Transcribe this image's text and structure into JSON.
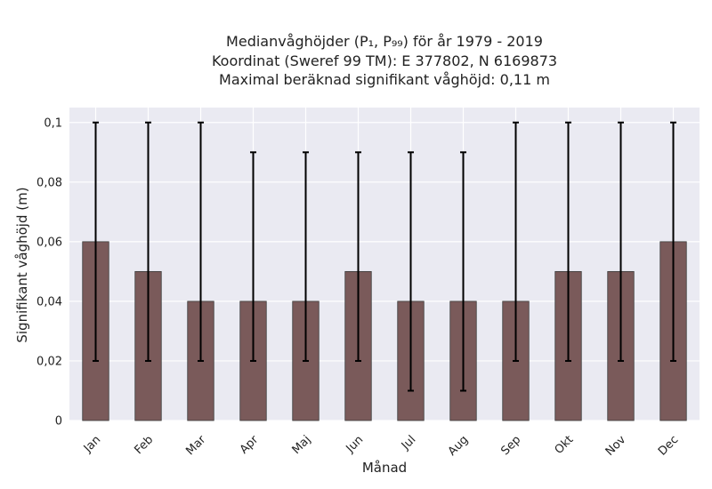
{
  "chart_data": {
    "type": "bar",
    "title_lines": [
      "Medianvåghöjder (P₁, P₉₉) för år 1979 - 2019",
      "Koordinat (Sweref 99 TM): E 377802, N 6169873",
      "Maximal beräknad signifikant våghöjd: 0,11 m"
    ],
    "xlabel": "Månad",
    "ylabel": "Signifikant våghöjd (m)",
    "categories": [
      "Jan",
      "Feb",
      "Mar",
      "Apr",
      "Maj",
      "Jun",
      "Jul",
      "Aug",
      "Sep",
      "Okt",
      "Nov",
      "Dec"
    ],
    "values": [
      0.06,
      0.05,
      0.04,
      0.04,
      0.04,
      0.05,
      0.04,
      0.04,
      0.04,
      0.05,
      0.05,
      0.06
    ],
    "p1": [
      0.02,
      0.02,
      0.02,
      0.02,
      0.02,
      0.02,
      0.01,
      0.01,
      0.02,
      0.02,
      0.02,
      0.02
    ],
    "p99": [
      0.1,
      0.1,
      0.1,
      0.09,
      0.09,
      0.09,
      0.09,
      0.09,
      0.1,
      0.1,
      0.1,
      0.1
    ],
    "ylim": [
      0,
      0.105
    ],
    "yticks": [
      0,
      0.02,
      0.04,
      0.06,
      0.08,
      0.1
    ],
    "ytick_labels": [
      "0",
      "0,02",
      "0,04",
      "0,06",
      "0,08",
      "0,1"
    ],
    "grid": true,
    "colors": {
      "bar": "#7a5a5a",
      "bar_edge": "#3a3a3a",
      "error": "#000000",
      "plot_bg": "#eaeaf2",
      "grid": "#ffffff"
    }
  }
}
